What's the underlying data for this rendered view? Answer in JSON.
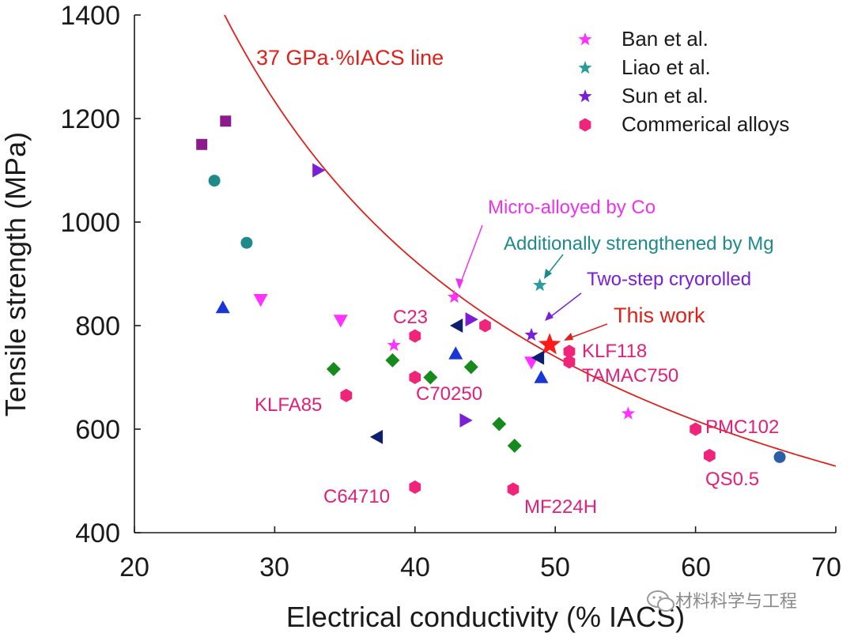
{
  "chart_data": {
    "type": "scatter",
    "xlabel": "Electrical conductivity (% IACS)",
    "ylabel": "Tensile strength (MPa)",
    "xlim": [
      20,
      70
    ],
    "ylim": [
      400,
      1400
    ],
    "xticks": [
      20,
      30,
      40,
      50,
      60,
      70
    ],
    "yticks": [
      400,
      600,
      800,
      1000,
      1200,
      1400
    ],
    "curve": {
      "label": "37 GPa·%IACS line",
      "color": "#e0201b",
      "equation": "y = 37000 / x",
      "x_from": 26.4,
      "x_to": 70
    },
    "legend": {
      "position": "top-right",
      "entries": [
        {
          "label": "Ban et al.",
          "marker": "star",
          "color": "#ff33ff"
        },
        {
          "label": "Liao et al.",
          "marker": "star",
          "color": "#2a9c9c"
        },
        {
          "label": "Sun et al.",
          "marker": "star",
          "color": "#7a1fd6"
        },
        {
          "label": "Commerical alloys",
          "marker": "hexagon",
          "color": "#f0257a"
        }
      ]
    },
    "series": [
      {
        "name": "Ban et al.",
        "marker": "star",
        "color": "#ff33ff",
        "points": [
          [
            42.8,
            855
          ],
          [
            38.5,
            762
          ],
          [
            55.2,
            630
          ]
        ]
      },
      {
        "name": "Liao et al.",
        "marker": "star",
        "color": "#2a9c9c",
        "points": [
          [
            48.9,
            878
          ]
        ]
      },
      {
        "name": "Sun et al.",
        "marker": "star",
        "color": "#7a1fd6",
        "points": [
          [
            48.3,
            782
          ]
        ]
      },
      {
        "name": "This work",
        "marker": "star",
        "color": "#ff1a1a",
        "points": [
          [
            49.6,
            763
          ]
        ]
      },
      {
        "name": "Commerical alloys",
        "marker": "hexagon",
        "color": "#f0257a",
        "points": [
          [
            40,
            780
          ],
          [
            45,
            800
          ],
          [
            40,
            700
          ],
          [
            35.1,
            665
          ],
          [
            51,
            750
          ],
          [
            51,
            730
          ],
          [
            60,
            600
          ],
          [
            61,
            549
          ],
          [
            40,
            488
          ],
          [
            47,
            484
          ]
        ]
      },
      {
        "name": "square",
        "marker": "square",
        "color": "#8b1a8b",
        "points": [
          [
            24.8,
            1150
          ],
          [
            26.5,
            1195
          ]
        ]
      },
      {
        "name": "circle",
        "marker": "circle",
        "color": "#1e8a8a",
        "points": [
          [
            25.7,
            1080
          ],
          [
            28,
            960
          ]
        ]
      },
      {
        "name": "ball",
        "marker": "circle",
        "color": "#2a5ea8",
        "points": [
          [
            66,
            546
          ]
        ]
      },
      {
        "name": "right-triangle",
        "marker": "triangle-right",
        "color": "#7a1fd6",
        "points": [
          [
            33.1,
            1100
          ],
          [
            44,
            812
          ],
          [
            43.6,
            617
          ]
        ]
      },
      {
        "name": "up-triangle",
        "marker": "triangle-up",
        "color": "#1a36d4",
        "points": [
          [
            26.3,
            835
          ],
          [
            42.9,
            746
          ],
          [
            49,
            700
          ]
        ]
      },
      {
        "name": "down-triangle",
        "marker": "triangle-down",
        "color": "#ff33ff",
        "points": [
          [
            29,
            850
          ],
          [
            34.7,
            810
          ],
          [
            48.3,
            729
          ]
        ]
      },
      {
        "name": "left-triangle",
        "marker": "triangle-left",
        "color": "#0d1f6e",
        "points": [
          [
            43,
            800
          ],
          [
            37.3,
            585
          ],
          [
            48.8,
            738
          ]
        ]
      },
      {
        "name": "diamond",
        "marker": "diamond",
        "color": "#178a1e",
        "points": [
          [
            34.2,
            716
          ],
          [
            38.4,
            733
          ],
          [
            41.1,
            700
          ],
          [
            44,
            720
          ],
          [
            46,
            610
          ],
          [
            47.1,
            568
          ]
        ]
      }
    ],
    "annotations": [
      {
        "text": "Micro-alloyed by Co",
        "color": "#ee33ee"
      },
      {
        "text": "Additionally strengthened by Mg",
        "color": "#1e8a8a"
      },
      {
        "text": "Two-step cryorolled",
        "color": "#7a1fd6"
      },
      {
        "text": "This work",
        "color": "#e0201b"
      }
    ],
    "alloy_labels": [
      {
        "text": "C23",
        "color": "#e0207a"
      },
      {
        "text": "KLF118",
        "color": "#e0207a"
      },
      {
        "text": "TAMAC750",
        "color": "#e0207a"
      },
      {
        "text": "KLFA85",
        "color": "#e0207a"
      },
      {
        "text": "C70250",
        "color": "#e0207a"
      },
      {
        "text": "PMC102",
        "color": "#e0207a"
      },
      {
        "text": "QS0.5",
        "color": "#e0207a"
      },
      {
        "text": "C64710",
        "color": "#e0207a"
      },
      {
        "text": "MF224H",
        "color": "#e0207a"
      }
    ]
  },
  "watermark": {
    "text": "材料科学与工程",
    "icon": "wechat-icon"
  }
}
